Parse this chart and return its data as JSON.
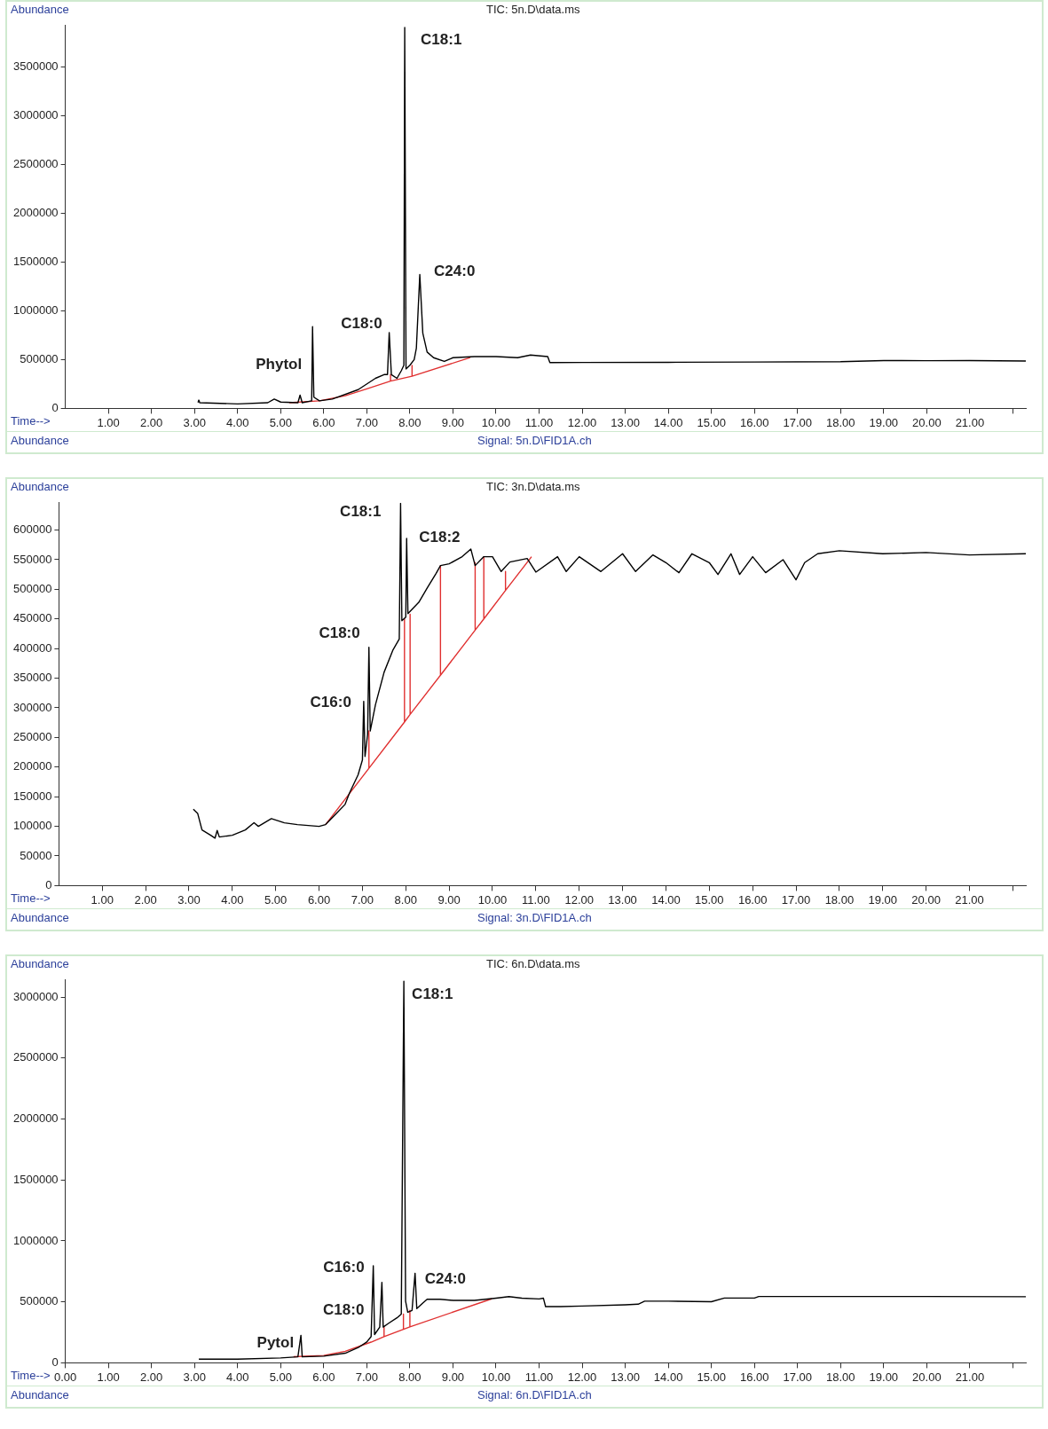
{
  "chart_data": [
    {
      "type": "line",
      "title": "TIC: 5n.D\\data.ms",
      "ylabel": "Abundance",
      "xlabel": "Time-->",
      "xlim": [
        0,
        22.3
      ],
      "ylim": [
        0,
        3920000
      ],
      "xticks": [
        {
          "value": 1,
          "label": "1.00"
        },
        {
          "value": 2,
          "label": "2.00"
        },
        {
          "value": 3,
          "label": "3.00"
        },
        {
          "value": 4,
          "label": "4.00"
        },
        {
          "value": 5,
          "label": "5.00"
        },
        {
          "value": 6,
          "label": "6.00"
        },
        {
          "value": 7,
          "label": "7.00"
        },
        {
          "value": 8,
          "label": "8.00"
        },
        {
          "value": 9,
          "label": "9.00"
        },
        {
          "value": 10,
          "label": "10.00"
        },
        {
          "value": 11,
          "label": "11.00"
        },
        {
          "value": 12,
          "label": "12.00"
        },
        {
          "value": 13,
          "label": "13.00"
        },
        {
          "value": 14,
          "label": "14.00"
        },
        {
          "value": 15,
          "label": "15.00"
        },
        {
          "value": 16,
          "label": "16.00"
        },
        {
          "value": 17,
          "label": "17.00"
        },
        {
          "value": 18,
          "label": "18.00"
        },
        {
          "value": 19,
          "label": "19.00"
        },
        {
          "value": 20,
          "label": "20.00"
        },
        {
          "value": 21,
          "label": "21.00"
        },
        {
          "value": 22,
          "label": null
        }
      ],
      "yticks": [
        0,
        500000,
        1000000,
        1500000,
        2000000,
        2500000,
        3000000,
        3500000
      ],
      "series": [
        {
          "color": "#000000",
          "x": [
            3.08,
            3.1,
            3.12,
            4.0,
            4.7,
            4.85,
            5.0,
            5.4,
            5.45,
            5.5,
            5.72,
            5.74,
            5.77,
            5.9,
            6.2,
            6.8,
            7.2,
            7.4,
            7.48,
            7.52,
            7.57,
            7.7,
            7.8,
            7.86,
            7.88,
            7.91,
            8.0,
            8.1,
            8.15,
            8.23,
            8.3,
            8.4,
            8.55,
            8.8,
            9.0,
            9.5,
            10.0,
            10.5,
            10.8,
            11.2,
            11.25,
            12.0,
            14.0,
            16.0,
            18.0,
            19.0,
            20.0,
            21.0,
            22.3
          ],
          "values": [
            60000,
            85000,
            58000,
            46000,
            58000,
            96000,
            65000,
            58000,
            135000,
            58000,
            77000,
            838000,
            115000,
            77000,
            96000,
            192000,
            308000,
            346000,
            346000,
            777000,
            346000,
            308000,
            385000,
            442000,
            3900000,
            404000,
            442000,
            500000,
            615000,
            1370000,
            770000,
            577000,
            519000,
            481000,
            519000,
            531000,
            531000,
            519000,
            546000,
            531000,
            469000,
            470000,
            472000,
            475000,
            478000,
            490000,
            488000,
            490000,
            485000
          ]
        },
        {
          "color": "#e03030",
          "x": [
            5.2,
            5.9,
            6.5,
            7.0,
            7.55,
            7.55,
            7.55,
            8.05,
            8.05,
            8.05,
            9.4
          ],
          "values": [
            58000,
            77000,
            130000,
            200000,
            280000,
            346000,
            280000,
            330000,
            440000,
            330000,
            520000
          ]
        }
      ],
      "annotations": [
        {
          "text": "Phytol",
          "x": 5.74,
          "y": 838000
        },
        {
          "text": "C18:0",
          "x": 7.52,
          "y": 777000
        },
        {
          "text": "C18:1",
          "x": 7.88,
          "y": 3900000
        },
        {
          "text": "C24:0",
          "x": 8.23,
          "y": 1370000
        },
        "Abundance",
        "Signal: 5n.D\\FID1A.ch"
      ]
    },
    {
      "type": "line",
      "title": "TIC: 3n.D\\data.ms",
      "ylabel": "Abundance",
      "xlabel": "Time-->",
      "xlim": [
        0,
        22.3
      ],
      "ylim": [
        0,
        646000
      ],
      "xticks": [
        {
          "value": 1,
          "label": "1.00"
        },
        {
          "value": 2,
          "label": "2.00"
        },
        {
          "value": 3,
          "label": "3.00"
        },
        {
          "value": 4,
          "label": "4.00"
        },
        {
          "value": 5,
          "label": "5.00"
        },
        {
          "value": 6,
          "label": "6.00"
        },
        {
          "value": 7,
          "label": "7.00"
        },
        {
          "value": 8,
          "label": "8.00"
        },
        {
          "value": 9,
          "label": "9.00"
        },
        {
          "value": 10,
          "label": "10.00"
        },
        {
          "value": 11,
          "label": "11.00"
        },
        {
          "value": 12,
          "label": "12.00"
        },
        {
          "value": 13,
          "label": "13.00"
        },
        {
          "value": 14,
          "label": "14.00"
        },
        {
          "value": 15,
          "label": "15.00"
        },
        {
          "value": 16,
          "label": "16.00"
        },
        {
          "value": 17,
          "label": "17.00"
        },
        {
          "value": 18,
          "label": "18.00"
        },
        {
          "value": 19,
          "label": "19.00"
        },
        {
          "value": 20,
          "label": "20.00"
        },
        {
          "value": 21,
          "label": "21.00"
        },
        {
          "value": 22,
          "label": null
        }
      ],
      "yticks": [
        0,
        50000,
        100000,
        150000,
        200000,
        250000,
        300000,
        350000,
        400000,
        450000,
        500000,
        550000,
        600000
      ],
      "series": [
        {
          "color": "#000000",
          "x": [
            3.1,
            3.2,
            3.3,
            3.5,
            3.6,
            3.65,
            3.7,
            4.0,
            4.3,
            4.5,
            4.6,
            4.9,
            5.2,
            5.5,
            6.0,
            6.15,
            6.4,
            6.6,
            6.7,
            6.9,
            7.0,
            7.03,
            7.06,
            7.12,
            7.15,
            7.18,
            7.3,
            7.5,
            7.7,
            7.85,
            7.88,
            7.91,
            8.0,
            8.02,
            8.05,
            8.3,
            8.5,
            8.7,
            8.8,
            9.0,
            9.3,
            9.5,
            9.6,
            9.8,
            10.0,
            10.2,
            10.4,
            10.8,
            11.0,
            11.5,
            11.7,
            12.0,
            12.5,
            13.0,
            13.3,
            13.7,
            14.0,
            14.3,
            14.6,
            15.0,
            15.2,
            15.5,
            15.7,
            16.0,
            16.3,
            16.7,
            17.0,
            17.2,
            17.5,
            18.0,
            19.0,
            20.0,
            21.0,
            22.3
          ],
          "values": [
            129000,
            122000,
            94000,
            85000,
            80000,
            93000,
            82000,
            85000,
            94000,
            106000,
            100000,
            113000,
            106000,
            103000,
            100000,
            103000,
            122000,
            137000,
            156000,
            187000,
            212000,
            311000,
            218000,
            255000,
            402000,
            261000,
            305000,
            360000,
            397000,
            416000,
            645000,
            447000,
            453000,
            586000,
            459000,
            478000,
            503000,
            527000,
            540000,
            543000,
            555000,
            568000,
            540000,
            555000,
            555000,
            530000,
            546000,
            552000,
            529000,
            555000,
            530000,
            555000,
            530000,
            560000,
            530000,
            558000,
            545000,
            528000,
            560000,
            545000,
            525000,
            560000,
            525000,
            555000,
            528000,
            550000,
            516000,
            545000,
            560000,
            565000,
            560000,
            562000,
            558000,
            560000
          ]
        },
        {
          "color": "#e03030",
          "x": [
            6.15,
            7.15,
            7.15,
            7.15,
            7.97,
            7.97,
            7.97,
            8.1,
            8.1,
            8.1,
            8.8,
            8.8,
            8.8,
            9.6,
            9.6,
            9.6,
            9.8,
            9.8,
            9.8,
            10.3,
            10.3,
            10.3,
            10.9
          ],
          "values": [
            103000,
            198000,
            261000,
            198000,
            276000,
            450000,
            276000,
            289000,
            458000,
            289000,
            355000,
            540000,
            355000,
            431000,
            545000,
            431000,
            450000,
            555000,
            450000,
            498000,
            530000,
            498000,
            555000
          ]
        }
      ],
      "annotations": [
        {
          "text": "C16:0",
          "x": 7.03,
          "y": 311000
        },
        {
          "text": "C18:0",
          "x": 7.15,
          "y": 402000
        },
        {
          "text": "C18:1",
          "x": 7.88,
          "y": 645000
        },
        {
          "text": "C18:2",
          "x": 8.02,
          "y": 586000
        },
        "Abundance",
        "Signal: 3n.D\\FID1A.ch"
      ]
    },
    {
      "type": "line",
      "title": "TIC: 6n.D\\data.ms",
      "ylabel": "Abundance",
      "xlabel": "Time-->",
      "xlim": [
        0,
        22.3
      ],
      "ylim": [
        0,
        3140000
      ],
      "xticks": [
        {
          "value": 0,
          "label": "0.00"
        },
        {
          "value": 1,
          "label": "1.00"
        },
        {
          "value": 2,
          "label": "2.00"
        },
        {
          "value": 3,
          "label": "3.00"
        },
        {
          "value": 4,
          "label": "4.00"
        },
        {
          "value": 5,
          "label": "5.00"
        },
        {
          "value": 6,
          "label": "6.00"
        },
        {
          "value": 7,
          "label": "7.00"
        },
        {
          "value": 8,
          "label": "8.00"
        },
        {
          "value": 9,
          "label": "9.00"
        },
        {
          "value": 10,
          "label": "10.00"
        },
        {
          "value": 11,
          "label": "11.00"
        },
        {
          "value": 12,
          "label": "12.00"
        },
        {
          "value": 13,
          "label": "13.00"
        },
        {
          "value": 14,
          "label": "14.00"
        },
        {
          "value": 15,
          "label": "15.00"
        },
        {
          "value": 16,
          "label": "16.00"
        },
        {
          "value": 17,
          "label": "17.00"
        },
        {
          "value": 18,
          "label": "18.00"
        },
        {
          "value": 19,
          "label": "19.00"
        },
        {
          "value": 20,
          "label": "20.00"
        },
        {
          "value": 21,
          "label": "21.00"
        },
        {
          "value": 22,
          "label": null
        }
      ],
      "yticks": [
        0,
        500000,
        1000000,
        1500000,
        2000000,
        2500000,
        3000000
      ],
      "series": [
        {
          "color": "#000000",
          "x": [
            3.1,
            4.0,
            5.0,
            5.4,
            5.47,
            5.5,
            6.0,
            6.5,
            6.8,
            7.0,
            7.1,
            7.15,
            7.18,
            7.3,
            7.35,
            7.38,
            7.5,
            7.7,
            7.8,
            7.86,
            7.9,
            7.95,
            8.05,
            8.12,
            8.16,
            8.3,
            8.4,
            8.7,
            9.0,
            9.5,
            10.0,
            10.3,
            10.6,
            11.0,
            11.1,
            11.15,
            11.5,
            12.0,
            13.0,
            13.3,
            13.45,
            14.0,
            15.0,
            15.3,
            16.0,
            16.1,
            17.0,
            18.0,
            20.0,
            22.3
          ],
          "values": [
            30000,
            30000,
            40000,
            49000,
            226000,
            49000,
            55000,
            79000,
            125000,
            171000,
            216000,
            796000,
            232000,
            293000,
            659000,
            293000,
            323000,
            369000,
            400000,
            3130000,
            506000,
            415000,
            430000,
            735000,
            445000,
            491000,
            521000,
            521000,
            512000,
            512000,
            530000,
            543000,
            530000,
            524000,
            530000,
            461000,
            461000,
            466000,
            476000,
            481000,
            506000,
            506000,
            501000,
            531000,
            531000,
            544000,
            544000,
            544000,
            544000,
            542000
          ]
        },
        {
          "color": "#e03030",
          "x": [
            5.3,
            6.0,
            6.5,
            7.1,
            7.4,
            7.4,
            7.4,
            7.85,
            7.85,
            7.85,
            8.0,
            8.0,
            8.0,
            9.9
          ],
          "values": [
            50000,
            60000,
            95000,
            170000,
            215000,
            293000,
            215000,
            275000,
            400000,
            275000,
            295000,
            430000,
            295000,
            525000
          ]
        }
      ],
      "annotations": [
        {
          "text": "Pytol",
          "x": 5.47,
          "y": 226000
        },
        {
          "text": "C18:0",
          "x": 7.35,
          "y": 659000
        },
        {
          "text": "C16:0",
          "x": 7.15,
          "y": 796000
        },
        {
          "text": "C18:1",
          "x": 7.86,
          "y": 3130000
        },
        {
          "text": "C24:0",
          "x": 8.12,
          "y": 735000
        },
        "Abundance",
        "Signal: 6n.D\\FID1A.ch"
      ]
    }
  ]
}
